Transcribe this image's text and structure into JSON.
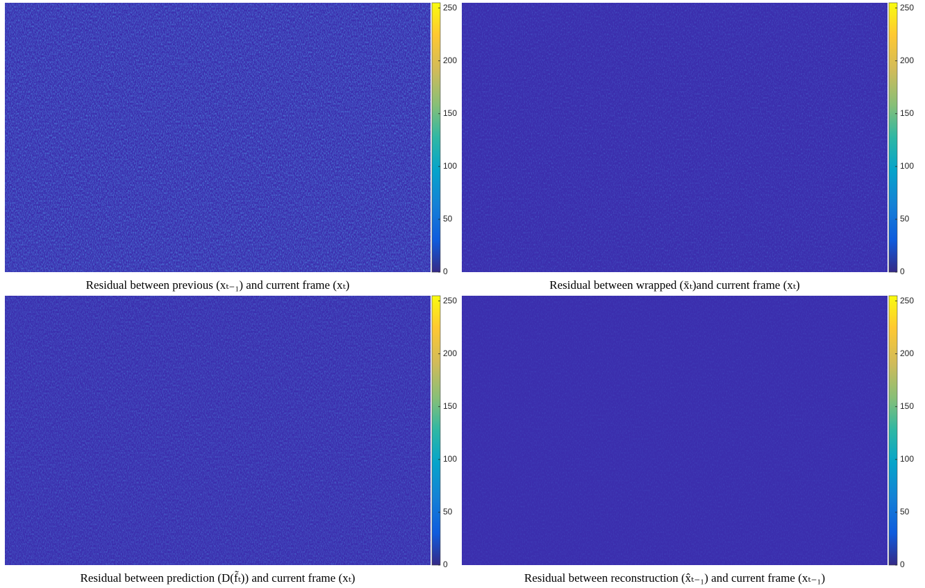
{
  "panels": [
    {
      "caption": "Residual between previous (xₜ₋₁) and current frame (xₜ)",
      "colorbar": {
        "lim": [
          0,
          255
        ],
        "ticks": [
          0,
          50,
          100,
          150,
          200,
          250
        ]
      }
    },
    {
      "caption": "Residual between wrapped (x̄ₜ)and current frame (xₜ)",
      "colorbar": {
        "lim": [
          0,
          255
        ],
        "ticks": [
          0,
          50,
          100,
          150,
          200,
          250
        ]
      }
    },
    {
      "caption": "Residual between prediction (D(f̃ₜ)) and current frame (xₜ)",
      "colorbar": {
        "lim": [
          0,
          255
        ],
        "ticks": [
          0,
          50,
          100,
          150,
          200,
          250
        ]
      }
    },
    {
      "caption": "Residual between reconstruction (x̂ₜ₋₁) and current frame (xₜ₋₁)",
      "colorbar": {
        "lim": [
          0,
          255
        ],
        "ticks": [
          0,
          50,
          100,
          150,
          200,
          250
        ]
      }
    }
  ]
}
